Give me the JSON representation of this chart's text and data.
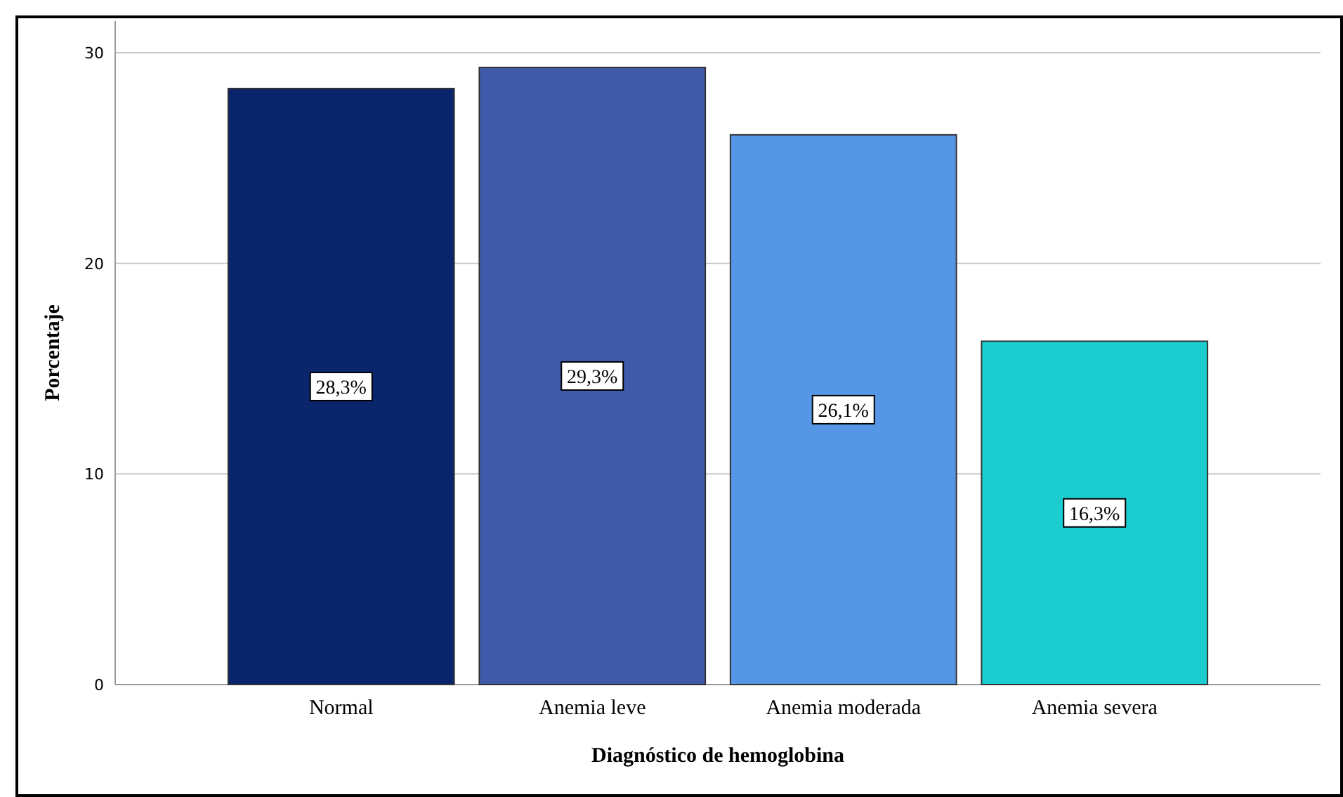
{
  "chart_data": {
    "type": "bar",
    "xlabel": "Diagnóstico de hemoglobina",
    "ylabel": "Porcentaje",
    "categories": [
      "Normal",
      "Anemia leve",
      "Anemia moderada",
      "Anemia severa"
    ],
    "values": [
      28.3,
      29.3,
      26.1,
      16.3
    ],
    "colors": [
      "#0a256c",
      "#3f5aa8",
      "#5597e4",
      "#1ccdd0"
    ],
    "value_labels": [
      "28,3%",
      "29,3%",
      "26,1%",
      "16,3%"
    ],
    "ylim": [
      0,
      31.5
    ],
    "yticks": [
      0,
      10,
      20,
      30
    ],
    "grid": "y"
  }
}
